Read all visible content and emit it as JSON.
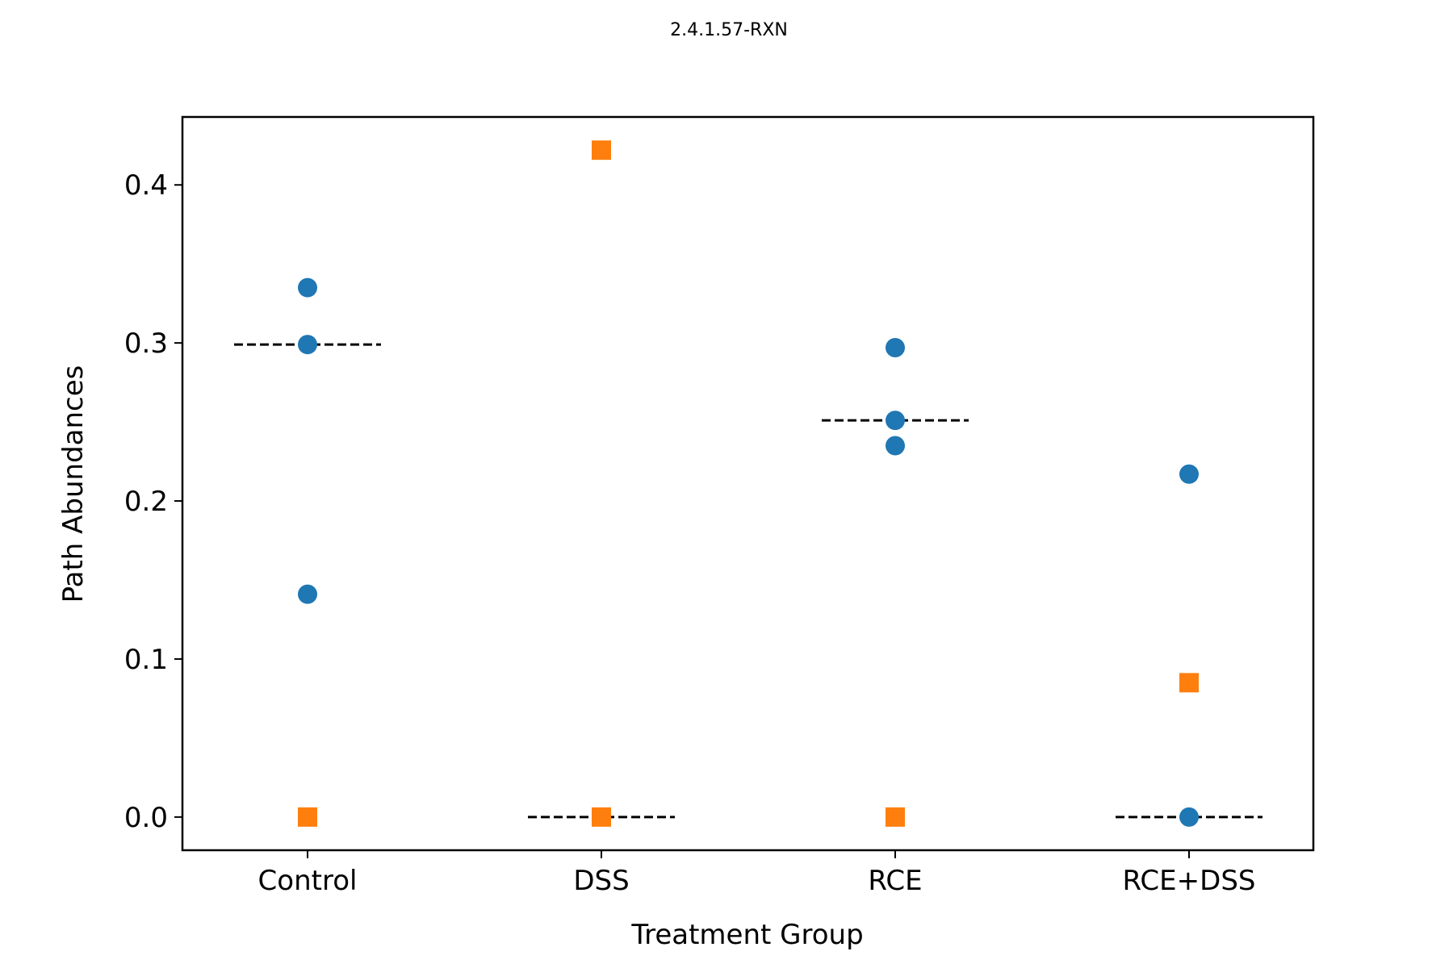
{
  "chart_data": {
    "type": "scatter",
    "title": "2.4.1.57-RXN",
    "xlabel": "Treatment Group",
    "ylabel": "Path Abundances",
    "categories": [
      "Control",
      "DSS",
      "RCE",
      "RCE+DSS"
    ],
    "yticks": [
      "0.0",
      "0.1",
      "0.2",
      "0.3",
      "0.4"
    ],
    "ylim": [
      -0.021,
      0.443
    ],
    "grid": false,
    "series": [
      {
        "marker": "circle",
        "color": "#1f77b4",
        "points": [
          {
            "category": "Control",
            "y": 0.335
          },
          {
            "category": "Control",
            "y": 0.299
          },
          {
            "category": "Control",
            "y": 0.141
          },
          {
            "category": "RCE",
            "y": 0.297
          },
          {
            "category": "RCE",
            "y": 0.251
          },
          {
            "category": "RCE",
            "y": 0.235
          },
          {
            "category": "RCE+DSS",
            "y": 0.217
          },
          {
            "category": "RCE+DSS",
            "y": 0.0
          }
        ]
      },
      {
        "marker": "square",
        "color": "#ff7f0e",
        "points": [
          {
            "category": "Control",
            "y": 0.0
          },
          {
            "category": "DSS",
            "y": 0.422
          },
          {
            "category": "DSS",
            "y": 0.0
          },
          {
            "category": "RCE",
            "y": 0.0
          },
          {
            "category": "RCE+DSS",
            "y": 0.085
          }
        ]
      }
    ],
    "medians": [
      {
        "category": "Control",
        "y": 0.299
      },
      {
        "category": "DSS",
        "y": 0.0
      },
      {
        "category": "RCE",
        "y": 0.251
      },
      {
        "category": "RCE+DSS",
        "y": 0.0
      }
    ],
    "median_style": {
      "color": "#000000",
      "dash": "dashed"
    }
  }
}
